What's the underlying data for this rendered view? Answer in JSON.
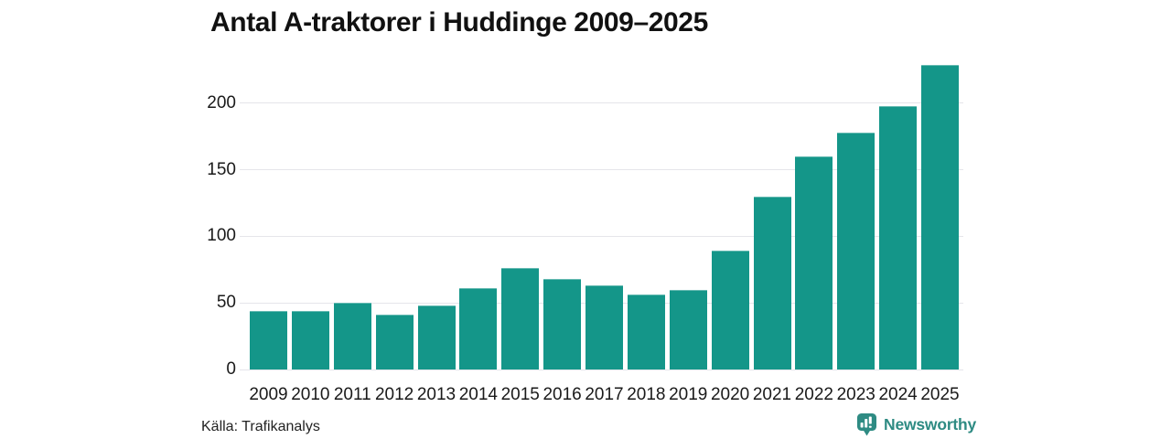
{
  "title": "Antal A-traktorer i Huddinge 2009–2025",
  "source": "Källa: Trafikanalys",
  "branding": {
    "name": "Newsworthy",
    "icon": "bar-chart-speech-bubble-icon",
    "color": "#2e8b83"
  },
  "colors": {
    "bar": "#149689",
    "gridline": "#e5e5ea",
    "axis_text": "#1a1a1a"
  },
  "chart_data": {
    "type": "bar",
    "title": "Antal A-traktorer i Huddinge 2009–2025",
    "categories": [
      "2009",
      "2010",
      "2011",
      "2012",
      "2013",
      "2014",
      "2015",
      "2016",
      "2017",
      "2018",
      "2019",
      "2020",
      "2021",
      "2022",
      "2023",
      "2024",
      "2025"
    ],
    "values": [
      44,
      44,
      50,
      41,
      48,
      61,
      76,
      68,
      63,
      56,
      60,
      89,
      130,
      160,
      178,
      198,
      229
    ],
    "xlabel": "",
    "ylabel": "",
    "yticks": [
      0,
      50,
      100,
      150,
      200
    ],
    "ylim": [
      0,
      235
    ],
    "grid": "horizontal",
    "legend": "none",
    "source": "Källa: Trafikanalys"
  }
}
